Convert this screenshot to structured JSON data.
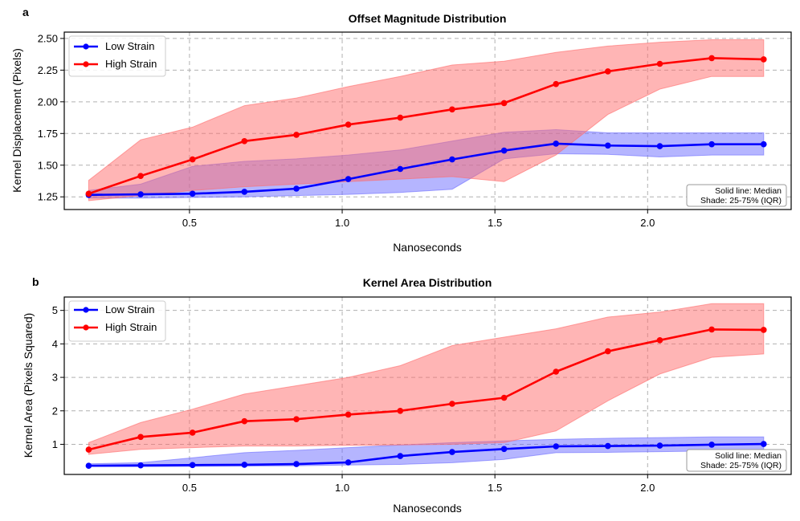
{
  "chart_data": [
    {
      "panel_label": "a",
      "type": "line",
      "title": "Offset Magnitude Distribution",
      "xlabel": "Nanoseconds",
      "ylabel": "Kernel Displacement (Pixels)",
      "xlim": [
        0.09,
        2.47
      ],
      "ylim": [
        1.15,
        2.55
      ],
      "xticks": [
        0.5,
        1.0,
        1.5,
        2.0
      ],
      "xtick_labels": [
        "0.5",
        "1.0",
        "1.5",
        "2.0"
      ],
      "yticks": [
        1.25,
        1.5,
        1.75,
        2.0,
        2.25,
        2.5
      ],
      "ytick_labels": [
        "1.25",
        "1.50",
        "1.75",
        "2.00",
        "2.25",
        "2.50"
      ],
      "grid": true,
      "legend_position": "upper-left",
      "note": [
        "Solid line: Median",
        "Shade: 25-75% (IQR)"
      ],
      "x": [
        0.17,
        0.34,
        0.51,
        0.68,
        0.85,
        1.02,
        1.19,
        1.36,
        1.53,
        1.7,
        1.87,
        2.04,
        2.21,
        2.38
      ],
      "series": [
        {
          "name": "Low Strain",
          "color": "#0000ff",
          "band_color": "#6b6bff",
          "values": [
            1.265,
            1.27,
            1.275,
            1.29,
            1.315,
            1.39,
            1.47,
            1.545,
            1.615,
            1.67,
            1.655,
            1.65,
            1.665,
            1.665
          ],
          "q25": [
            1.24,
            1.24,
            1.245,
            1.25,
            1.26,
            1.27,
            1.285,
            1.31,
            1.55,
            1.59,
            1.585,
            1.565,
            1.58,
            1.58
          ],
          "q75": [
            1.3,
            1.35,
            1.49,
            1.53,
            1.55,
            1.58,
            1.62,
            1.69,
            1.76,
            1.78,
            1.755,
            1.755,
            1.755,
            1.755
          ]
        },
        {
          "name": "High Strain",
          "color": "#ff0000",
          "band_color": "#ff6b6b",
          "values": [
            1.275,
            1.415,
            1.545,
            1.69,
            1.74,
            1.82,
            1.875,
            1.94,
            1.99,
            2.14,
            2.24,
            2.3,
            2.345,
            2.335
          ],
          "q25": [
            1.22,
            1.26,
            1.3,
            1.33,
            1.35,
            1.37,
            1.39,
            1.41,
            1.37,
            1.58,
            1.9,
            2.1,
            2.2,
            2.2
          ],
          "q75": [
            1.38,
            1.7,
            1.8,
            1.97,
            2.03,
            2.12,
            2.2,
            2.29,
            2.32,
            2.39,
            2.44,
            2.47,
            2.49,
            2.49
          ]
        }
      ]
    },
    {
      "panel_label": "b",
      "type": "line",
      "title": "Kernel Area Distribution",
      "xlabel": "Nanoseconds",
      "ylabel": "Kernel Area (Pixels Squared)",
      "xlim": [
        0.09,
        2.47
      ],
      "ylim": [
        0.1,
        5.4
      ],
      "xticks": [
        0.5,
        1.0,
        1.5,
        2.0
      ],
      "xtick_labels": [
        "0.5",
        "1.0",
        "1.5",
        "2.0"
      ],
      "yticks": [
        1,
        2,
        3,
        4,
        5
      ],
      "ytick_labels": [
        "1",
        "2",
        "3",
        "4",
        "5"
      ],
      "grid": true,
      "legend_position": "upper-left",
      "note": [
        "Solid line: Median",
        "Shade: 25-75% (IQR)"
      ],
      "x": [
        0.17,
        0.34,
        0.51,
        0.68,
        0.85,
        1.02,
        1.19,
        1.36,
        1.53,
        1.7,
        1.87,
        2.04,
        2.21,
        2.38
      ],
      "series": [
        {
          "name": "Low Strain",
          "color": "#0000ff",
          "band_color": "#6b6bff",
          "values": [
            0.36,
            0.37,
            0.38,
            0.39,
            0.41,
            0.46,
            0.65,
            0.77,
            0.86,
            0.94,
            0.95,
            0.96,
            0.99,
            1.01
          ],
          "q25": [
            0.34,
            0.33,
            0.34,
            0.35,
            0.36,
            0.38,
            0.4,
            0.45,
            0.55,
            0.75,
            0.76,
            0.78,
            0.8,
            0.82
          ],
          "q75": [
            0.42,
            0.45,
            0.6,
            0.75,
            0.82,
            0.9,
            0.98,
            1.05,
            1.1,
            1.15,
            1.18,
            1.2,
            1.22,
            1.22
          ]
        },
        {
          "name": "High Strain",
          "color": "#ff0000",
          "band_color": "#ff6b6b",
          "values": [
            0.84,
            1.22,
            1.35,
            1.69,
            1.75,
            1.89,
            2.0,
            2.21,
            2.39,
            3.17,
            3.78,
            4.11,
            4.43,
            4.42
          ],
          "q25": [
            0.7,
            0.85,
            0.9,
            0.95,
            0.95,
            0.97,
            0.98,
            1.0,
            1.05,
            1.4,
            2.3,
            3.1,
            3.6,
            3.7
          ],
          "q75": [
            1.05,
            1.65,
            2.05,
            2.5,
            2.75,
            3.0,
            3.35,
            3.95,
            4.2,
            4.45,
            4.8,
            4.95,
            5.2,
            5.2
          ]
        }
      ]
    }
  ]
}
